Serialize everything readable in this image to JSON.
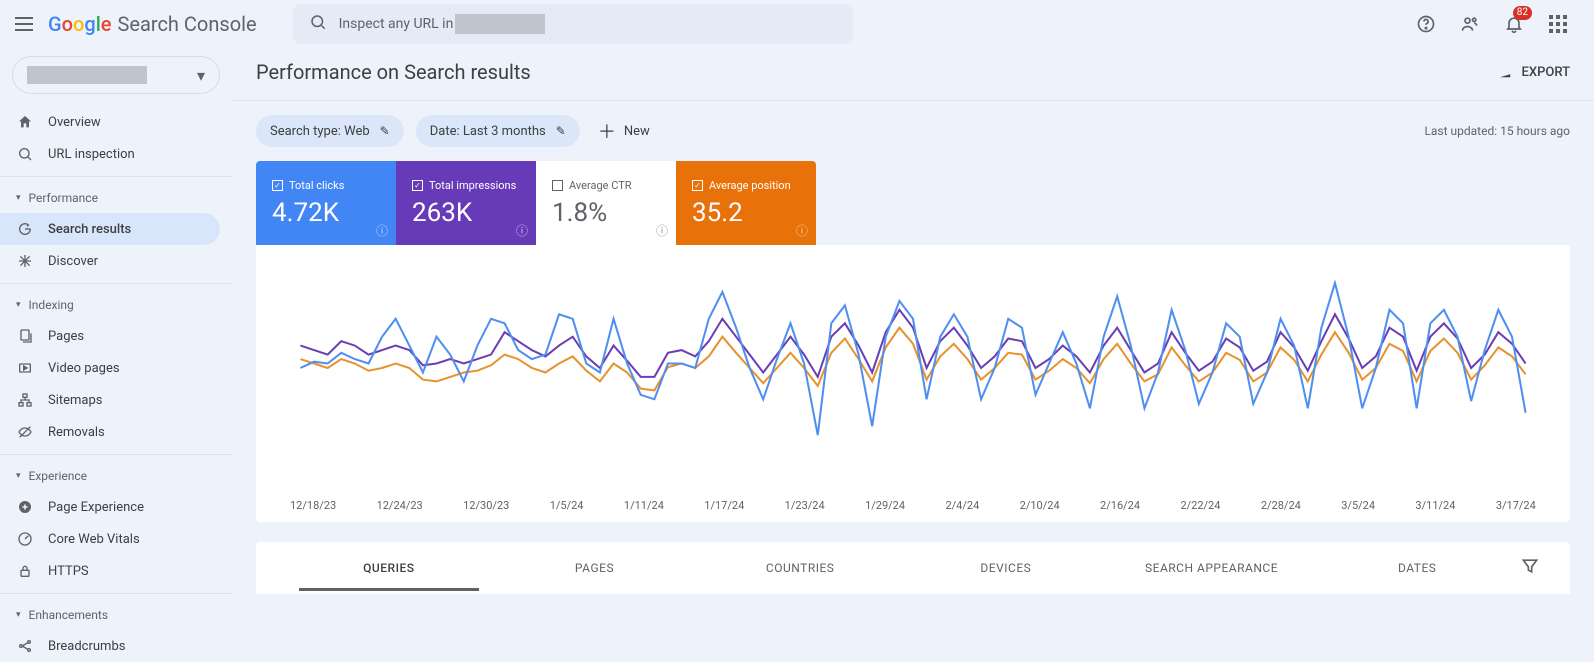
{
  "app": {
    "name": "Search Console"
  },
  "search": {
    "prefix": "Inspect any URL in"
  },
  "notifications": {
    "count": "82"
  },
  "sidebar": {
    "items": [
      {
        "label": "Overview"
      },
      {
        "label": "URL inspection"
      }
    ],
    "sections": {
      "performance": {
        "title": "Performance",
        "items": [
          "Search results",
          "Discover"
        ]
      },
      "indexing": {
        "title": "Indexing",
        "items": [
          "Pages",
          "Video pages",
          "Sitemaps",
          "Removals"
        ]
      },
      "experience": {
        "title": "Experience",
        "items": [
          "Page Experience",
          "Core Web Vitals",
          "HTTPS"
        ]
      },
      "enhancements": {
        "title": "Enhancements",
        "items": [
          "Breadcrumbs"
        ]
      }
    }
  },
  "page": {
    "title": "Performance on Search results",
    "export": "EXPORT",
    "chip_search_type": "Search type: Web",
    "chip_date": "Date: Last 3 months",
    "new": "New",
    "updated": "Last updated: 15 hours ago"
  },
  "metrics": {
    "clicks": {
      "label": "Total clicks",
      "value": "4.72K",
      "checked": true,
      "bg": "#4285f4"
    },
    "impressions": {
      "label": "Total impressions",
      "value": "263K",
      "checked": true,
      "bg": "#673ab7"
    },
    "ctr": {
      "label": "Average CTR",
      "value": "1.8%",
      "checked": false,
      "bg": "#ffffff"
    },
    "position": {
      "label": "Average position",
      "value": "35.2",
      "checked": true,
      "bg": "#e8710a"
    }
  },
  "chart": {
    "type": "line",
    "x_labels": [
      "12/18/23",
      "12/24/23",
      "12/30/23",
      "1/5/24",
      "1/11/24",
      "1/17/24",
      "1/23/24",
      "1/29/24",
      "2/4/24",
      "2/10/24",
      "2/16/24",
      "2/22/24",
      "2/28/24",
      "3/5/24",
      "3/11/24",
      "3/17/24"
    ],
    "series": {
      "clicks": {
        "color": "#4f8ff0",
        "stroke_width": 2,
        "values": [
          95,
          102,
          100,
          112,
          105,
          100,
          130,
          150,
          120,
          90,
          130,
          110,
          80,
          120,
          150,
          145,
          115,
          105,
          110,
          155,
          150,
          100,
          90,
          150,
          100,
          65,
          60,
          100,
          100,
          95,
          150,
          180,
          140,
          95,
          60,
          105,
          145,
          100,
          20,
          145,
          165,
          110,
          30,
          130,
          170,
          150,
          60,
          130,
          155,
          130,
          60,
          95,
          150,
          140,
          65,
          100,
          135,
          100,
          50,
          130,
          175,
          120,
          50,
          90,
          160,
          115,
          55,
          90,
          145,
          130,
          55,
          90,
          150,
          120,
          50,
          140,
          190,
          130,
          50,
          95,
          160,
          145,
          50,
          145,
          160,
          130,
          58,
          115,
          160,
          130,
          45
        ]
      },
      "impressions": {
        "color": "#6a3fb5",
        "stroke_width": 2,
        "values": [
          120,
          115,
          110,
          125,
          120,
          110,
          115,
          120,
          115,
          98,
          100,
          105,
          100,
          105,
          110,
          135,
          125,
          115,
          108,
          120,
          130,
          108,
          95,
          120,
          103,
          85,
          85,
          112,
          115,
          108,
          125,
          150,
          130,
          110,
          90,
          110,
          130,
          110,
          85,
          130,
          145,
          120,
          90,
          135,
          160,
          140,
          95,
          125,
          140,
          120,
          95,
          108,
          128,
          125,
          95,
          105,
          120,
          108,
          90,
          120,
          140,
          115,
          90,
          100,
          135,
          112,
          92,
          102,
          128,
          118,
          92,
          102,
          135,
          118,
          92,
          125,
          155,
          128,
          95,
          108,
          140,
          130,
          92,
          130,
          145,
          128,
          95,
          110,
          135,
          122,
          100
        ]
      },
      "position": {
        "color": "#e8922e",
        "stroke_width": 2,
        "values": [
          105,
          100,
          95,
          105,
          100,
          92,
          95,
          100,
          95,
          82,
          80,
          85,
          90,
          92,
          98,
          110,
          105,
          95,
          90,
          100,
          108,
          92,
          80,
          100,
          90,
          72,
          70,
          96,
          100,
          95,
          108,
          130,
          112,
          95,
          78,
          95,
          112,
          95,
          75,
          112,
          128,
          105,
          80,
          118,
          140,
          122,
          82,
          108,
          122,
          105,
          82,
          95,
          112,
          110,
          82,
          92,
          105,
          95,
          78,
          105,
          122,
          100,
          80,
          88,
          118,
          98,
          80,
          90,
          112,
          104,
          80,
          90,
          118,
          104,
          80,
          110,
          135,
          112,
          82,
          95,
          122,
          114,
          80,
          114,
          128,
          112,
          82,
          98,
          118,
          108,
          88
        ]
      }
    },
    "background_color": "#ffffff"
  },
  "tabs": [
    "QUERIES",
    "PAGES",
    "COUNTRIES",
    "DEVICES",
    "SEARCH APPEARANCE",
    "DATES"
  ],
  "active_tab": 0
}
